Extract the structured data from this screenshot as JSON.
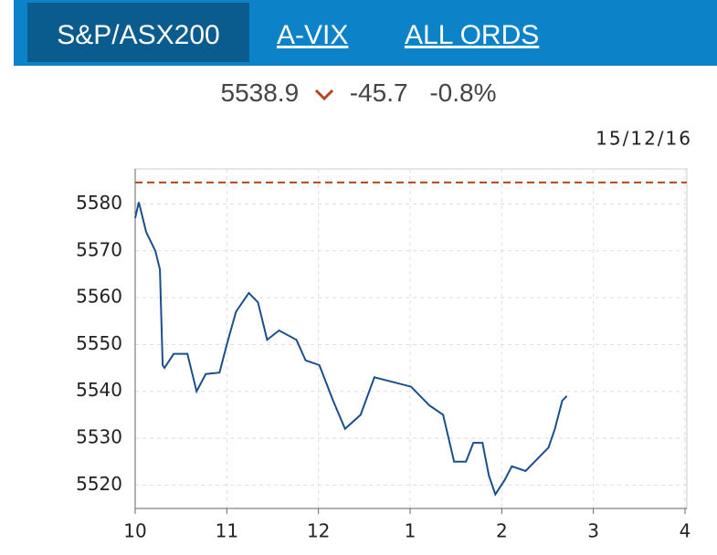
{
  "tabs": [
    "S&P/ASX200",
    "A-VIX",
    "ALL ORDS"
  ],
  "quote": {
    "last": "5538.9",
    "change": "-45.7",
    "percent": "-0.8%"
  },
  "chart_data": {
    "type": "line",
    "date": "15/12/16",
    "x": [
      10.0,
      10.04,
      10.07,
      10.12,
      10.22,
      10.27,
      10.3,
      10.32,
      10.42,
      10.57,
      10.62,
      10.67,
      10.77,
      10.92,
      11.0,
      11.1,
      11.24,
      11.34,
      11.44,
      11.57,
      11.76,
      11.86,
      12.01,
      12.16,
      12.29,
      12.46,
      12.61,
      12.81,
      13.01,
      13.21,
      13.36,
      13.48,
      13.61,
      13.69,
      13.79,
      13.86,
      13.93,
      14.03,
      14.11,
      14.26,
      14.41,
      14.51,
      14.58,
      14.66,
      14.71
    ],
    "values": [
      5577,
      5580.4,
      5578,
      5574,
      5570,
      5566,
      5545.6,
      5545,
      5548,
      5548,
      5544,
      5540,
      5543.7,
      5544,
      5550,
      5557,
      5561,
      5559,
      5551,
      5553,
      5551,
      5546.6,
      5545.6,
      5538,
      5532,
      5535,
      5543,
      5542,
      5541,
      5537,
      5535,
      5525,
      5525,
      5529,
      5529,
      5522,
      5518,
      5521,
      5524,
      5523,
      5526,
      5528,
      5532,
      5538,
      5539
    ],
    "color": "#1a4f8b",
    "prev_close": 5584.6,
    "prev_close_color": "#b5441c",
    "xlim": [
      10,
      16.02
    ],
    "ylim": [
      5515,
      5587.5
    ],
    "xticks": [
      10,
      11,
      12,
      {
        "value": 13,
        "label": "1"
      },
      {
        "value": 14,
        "label": "2"
      },
      {
        "value": 15,
        "label": "3"
      },
      {
        "value": 16,
        "label": "4"
      }
    ],
    "yticks": [
      5520,
      5530,
      5540,
      5550,
      5560,
      5570,
      5580
    ],
    "grid": true
  }
}
